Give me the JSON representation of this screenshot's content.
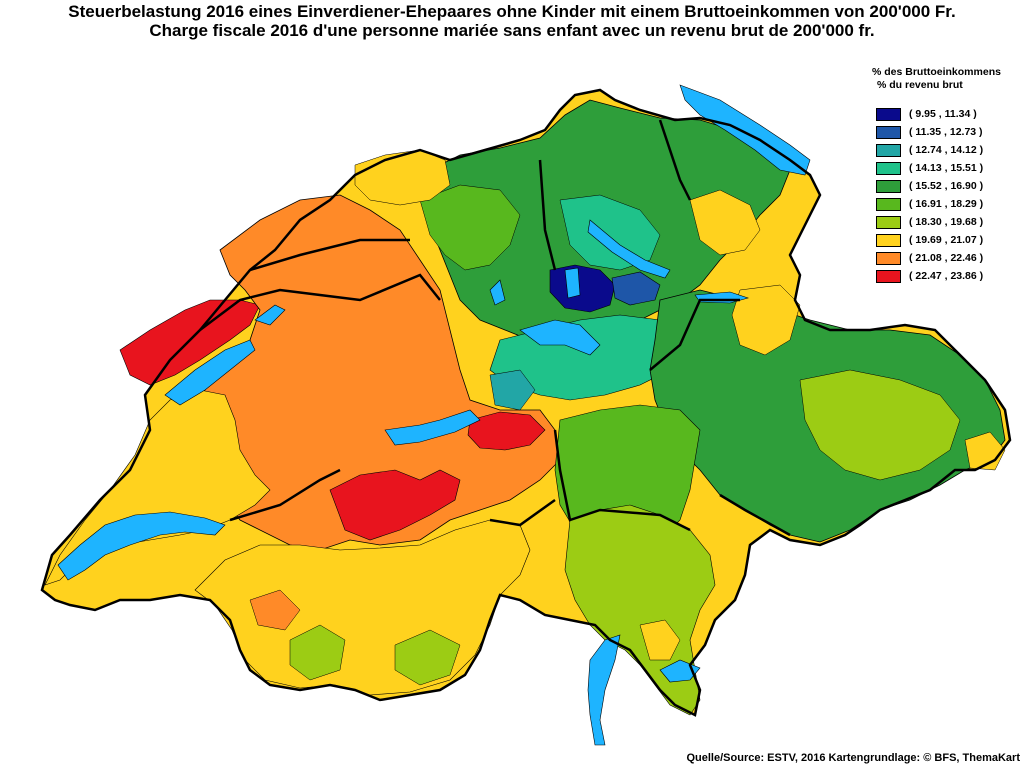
{
  "title_de": "Steuerbelastung 2016 eines Einverdiener-Ehepaares ohne Kinder mit einem Bruttoeinkommen von 200'000 Fr.",
  "title_fr": "Charge fiscale 2016 d'une personne mariée sans enfant avec un revenu brut de 200'000 fr.",
  "legend": {
    "header_de": "% des Bruttoeinkommens",
    "header_fr": "% du revenu brut",
    "items": [
      {
        "label": "( 9.95 , 11.34 )",
        "color": "#0a0a8c"
      },
      {
        "label": "( 11.35 , 12.73 )",
        "color": "#1e56a8"
      },
      {
        "label": "( 12.74 , 14.12 )",
        "color": "#22a6a6"
      },
      {
        "label": "( 14.13 , 15.51 )",
        "color": "#1fc28a"
      },
      {
        "label": "( 15.52 , 16.90 )",
        "color": "#2e9e3a"
      },
      {
        "label": "( 16.91 , 18.29 )",
        "color": "#58b81e"
      },
      {
        "label": "( 18.30 , 19.68 )",
        "color": "#9ccc14"
      },
      {
        "label": "( 19.69 , 21.07 )",
        "color": "#ffd21e"
      },
      {
        "label": "( 21.08 , 22.46 )",
        "color": "#ff8a28"
      },
      {
        "label": "( 22.47 , 23.86 )",
        "color": "#e8141e"
      }
    ]
  },
  "source": "Quelle/Source: ESTV, 2016 Kartengrundlage: © BFS, ThemaKart",
  "map": {
    "lake_color": "#1eb4ff",
    "border_color": "#000000"
  }
}
